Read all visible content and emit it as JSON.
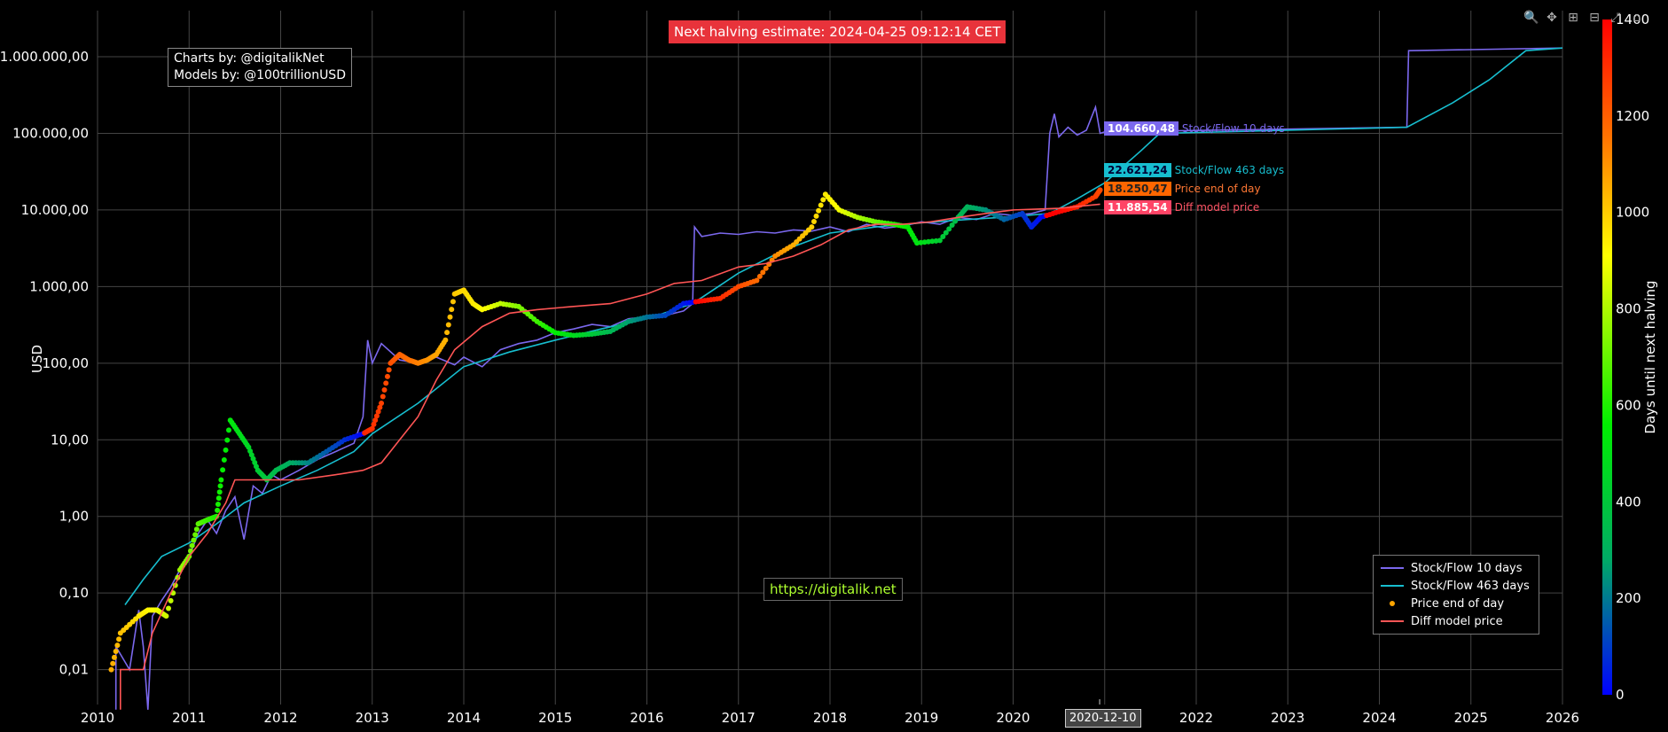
{
  "banner": {
    "text": "Next halving estimate: 2024-04-25 09:12:14 CET"
  },
  "credits": {
    "line1": "Charts by: @digitalikNet",
    "line2": "Models by: @100trillionUSD"
  },
  "url": {
    "text": "https://digitalik.net"
  },
  "hover_date": "2020-12-10",
  "toolbar_icons": [
    "zoom-icon",
    "pan-icon",
    "zoom-in-icon",
    "zoom-out-icon",
    "autoscale-icon",
    "reset-icon"
  ],
  "chart_data": {
    "type": "line",
    "title": "",
    "xlabel": "",
    "ylabel": "USD",
    "y_scale": "log",
    "xlim": [
      2010,
      2026
    ],
    "ylim": [
      0.0035,
      4000000
    ],
    "grid": true,
    "x_ticks": [
      "2010",
      "2011",
      "2012",
      "2013",
      "2014",
      "2015",
      "2016",
      "2017",
      "2018",
      "2019",
      "2020",
      "2021",
      "2022",
      "2023",
      "2024",
      "2025",
      "2026"
    ],
    "y_ticks": [
      {
        "value": 0.01,
        "label": "0,01"
      },
      {
        "value": 0.1,
        "label": "0,10"
      },
      {
        "value": 1,
        "label": "1,00"
      },
      {
        "value": 10,
        "label": "10,00"
      },
      {
        "value": 100,
        "label": "100,00"
      },
      {
        "value": 1000,
        "label": "1.000,00"
      },
      {
        "value": 10000,
        "label": "10.000,00"
      },
      {
        "value": 100000,
        "label": "100.000,00"
      },
      {
        "value": 1000000,
        "label": "1.000.000,00"
      }
    ],
    "legend_position": "bottom-right",
    "colorbar": {
      "label": "Days until next halving",
      "range": [
        0,
        1400
      ],
      "ticks": [
        {
          "value": 0,
          "label": "0"
        },
        {
          "value": 200,
          "label": "200"
        },
        {
          "value": 400,
          "label": "400"
        },
        {
          "value": 600,
          "label": "600"
        },
        {
          "value": 800,
          "label": "800"
        },
        {
          "value": 1000,
          "label": "1000"
        },
        {
          "value": 1200,
          "label": "1200"
        },
        {
          "value": 1400,
          "label": "1400"
        }
      ],
      "colors": [
        "#0000ff",
        "#00aa66",
        "#00ee00",
        "#ffff00",
        "#ff7700",
        "#ff0000"
      ]
    },
    "series": [
      {
        "name": "Stock/Flow 10 days",
        "color": "#7b68ee",
        "end_value_label": "104.660,48",
        "points": [
          [
            2010.2,
            0.003
          ],
          [
            2010.2,
            0.02
          ],
          [
            2010.35,
            0.01
          ],
          [
            2010.45,
            0.06
          ],
          [
            2010.5,
            0.02
          ],
          [
            2010.55,
            0.003
          ],
          [
            2010.6,
            0.05
          ],
          [
            2010.7,
            0.08
          ],
          [
            2010.8,
            0.12
          ],
          [
            2010.9,
            0.2
          ],
          [
            2011.0,
            0.3
          ],
          [
            2011.1,
            0.6
          ],
          [
            2011.2,
            0.9
          ],
          [
            2011.3,
            0.6
          ],
          [
            2011.4,
            1.2
          ],
          [
            2011.5,
            1.8
          ],
          [
            2011.6,
            0.5
          ],
          [
            2011.7,
            2.5
          ],
          [
            2011.8,
            2.0
          ],
          [
            2011.9,
            3.5
          ],
          [
            2012.0,
            3.0
          ],
          [
            2012.2,
            4.0
          ],
          [
            2012.4,
            5.5
          ],
          [
            2012.6,
            7.0
          ],
          [
            2012.8,
            9.0
          ],
          [
            2012.9,
            20
          ],
          [
            2012.95,
            200
          ],
          [
            2013.0,
            100
          ],
          [
            2013.1,
            180
          ],
          [
            2013.3,
            110
          ],
          [
            2013.5,
            100
          ],
          [
            2013.7,
            120
          ],
          [
            2013.9,
            95
          ],
          [
            2014.0,
            120
          ],
          [
            2014.2,
            90
          ],
          [
            2014.4,
            150
          ],
          [
            2014.6,
            180
          ],
          [
            2014.8,
            200
          ],
          [
            2015.0,
            250
          ],
          [
            2015.2,
            280
          ],
          [
            2015.4,
            320
          ],
          [
            2015.6,
            300
          ],
          [
            2015.8,
            380
          ],
          [
            2016.0,
            400
          ],
          [
            2016.2,
            420
          ],
          [
            2016.4,
            480
          ],
          [
            2016.5,
            600
          ],
          [
            2016.52,
            6000
          ],
          [
            2016.6,
            4500
          ],
          [
            2016.8,
            5000
          ],
          [
            2017.0,
            4800
          ],
          [
            2017.2,
            5200
          ],
          [
            2017.4,
            5000
          ],
          [
            2017.6,
            5500
          ],
          [
            2017.8,
            5300
          ],
          [
            2018.0,
            6000
          ],
          [
            2018.2,
            5200
          ],
          [
            2018.4,
            6500
          ],
          [
            2018.6,
            5800
          ],
          [
            2018.8,
            6200
          ],
          [
            2019.0,
            7000
          ],
          [
            2019.2,
            6500
          ],
          [
            2019.4,
            8000
          ],
          [
            2019.6,
            7500
          ],
          [
            2019.8,
            9000
          ],
          [
            2020.0,
            8500
          ],
          [
            2020.2,
            9000
          ],
          [
            2020.35,
            10000
          ],
          [
            2020.4,
            100000
          ],
          [
            2020.45,
            180000
          ],
          [
            2020.5,
            90000
          ],
          [
            2020.6,
            120000
          ],
          [
            2020.7,
            95000
          ],
          [
            2020.8,
            110000
          ],
          [
            2020.9,
            220000
          ],
          [
            2020.95,
            100000
          ],
          [
            2021.0,
            104660
          ],
          [
            2024.3,
            120000
          ],
          [
            2024.32,
            1200000
          ],
          [
            2026.0,
            1300000
          ]
        ]
      },
      {
        "name": "Stock/Flow 463 days",
        "color": "#17becf",
        "end_value_label": "22.621,24",
        "points": [
          [
            2010.3,
            0.07
          ],
          [
            2010.5,
            0.15
          ],
          [
            2010.7,
            0.3
          ],
          [
            2011.0,
            0.45
          ],
          [
            2011.3,
            0.8
          ],
          [
            2011.6,
            1.5
          ],
          [
            2012.0,
            2.5
          ],
          [
            2012.4,
            4.0
          ],
          [
            2012.8,
            7.0
          ],
          [
            2013.0,
            12
          ],
          [
            2013.5,
            30
          ],
          [
            2014.0,
            90
          ],
          [
            2014.5,
            140
          ],
          [
            2015.0,
            200
          ],
          [
            2015.5,
            280
          ],
          [
            2016.0,
            380
          ],
          [
            2016.5,
            600
          ],
          [
            2017.0,
            1500
          ],
          [
            2017.5,
            3000
          ],
          [
            2018.0,
            5000
          ],
          [
            2018.5,
            6000
          ],
          [
            2019.0,
            6800
          ],
          [
            2019.5,
            7500
          ],
          [
            2020.0,
            8200
          ],
          [
            2020.4,
            9000
          ],
          [
            2020.7,
            14000
          ],
          [
            2021.0,
            22621
          ],
          [
            2021.4,
            60000
          ],
          [
            2021.6,
            100000
          ],
          [
            2024.3,
            120000
          ],
          [
            2024.8,
            250000
          ],
          [
            2025.2,
            500000
          ],
          [
            2025.6,
            1200000
          ],
          [
            2026.0,
            1300000
          ]
        ]
      },
      {
        "name": "Price end of day",
        "color": "#ffa500",
        "marker": "dot",
        "end_value_label": "18.250,47",
        "points": [
          [
            2010.15,
            0.01
          ],
          [
            2010.25,
            0.03
          ],
          [
            2010.45,
            0.05
          ],
          [
            2010.55,
            0.06
          ],
          [
            2010.65,
            0.06
          ],
          [
            2010.75,
            0.05
          ],
          [
            2010.9,
            0.2
          ],
          [
            2011.0,
            0.3
          ],
          [
            2011.1,
            0.8
          ],
          [
            2011.2,
            0.9
          ],
          [
            2011.3,
            1.0
          ],
          [
            2011.35,
            3.0
          ],
          [
            2011.45,
            18
          ],
          [
            2011.55,
            12
          ],
          [
            2011.65,
            8
          ],
          [
            2011.75,
            4
          ],
          [
            2011.85,
            3
          ],
          [
            2011.95,
            4
          ],
          [
            2012.1,
            5
          ],
          [
            2012.3,
            5
          ],
          [
            2012.5,
            7
          ],
          [
            2012.7,
            10
          ],
          [
            2012.9,
            12
          ],
          [
            2013.0,
            14
          ],
          [
            2013.1,
            30
          ],
          [
            2013.2,
            100
          ],
          [
            2013.3,
            130
          ],
          [
            2013.4,
            110
          ],
          [
            2013.5,
            100
          ],
          [
            2013.6,
            110
          ],
          [
            2013.7,
            130
          ],
          [
            2013.8,
            200
          ],
          [
            2013.9,
            800
          ],
          [
            2014.0,
            900
          ],
          [
            2014.1,
            600
          ],
          [
            2014.2,
            500
          ],
          [
            2014.4,
            600
          ],
          [
            2014.6,
            550
          ],
          [
            2014.8,
            350
          ],
          [
            2015.0,
            250
          ],
          [
            2015.2,
            230
          ],
          [
            2015.4,
            240
          ],
          [
            2015.6,
            260
          ],
          [
            2015.8,
            350
          ],
          [
            2016.0,
            400
          ],
          [
            2016.2,
            420
          ],
          [
            2016.4,
            600
          ],
          [
            2016.6,
            650
          ],
          [
            2016.8,
            700
          ],
          [
            2017.0,
            1000
          ],
          [
            2017.2,
            1200
          ],
          [
            2017.4,
            2500
          ],
          [
            2017.6,
            3500
          ],
          [
            2017.8,
            6000
          ],
          [
            2017.95,
            16000
          ],
          [
            2018.1,
            10000
          ],
          [
            2018.3,
            8000
          ],
          [
            2018.5,
            7000
          ],
          [
            2018.7,
            6500
          ],
          [
            2018.85,
            6000
          ],
          [
            2018.95,
            3700
          ],
          [
            2019.2,
            4000
          ],
          [
            2019.4,
            8000
          ],
          [
            2019.5,
            11000
          ],
          [
            2019.7,
            10000
          ],
          [
            2019.9,
            7500
          ],
          [
            2020.1,
            9000
          ],
          [
            2020.2,
            6000
          ],
          [
            2020.3,
            8000
          ],
          [
            2020.5,
            9500
          ],
          [
            2020.7,
            11000
          ],
          [
            2020.9,
            15000
          ],
          [
            2020.95,
            18250
          ]
        ]
      },
      {
        "name": "Diff model price",
        "color": "#ff5555",
        "end_value_label": "11.885,54",
        "points": [
          [
            2010.25,
            0.003
          ],
          [
            2010.25,
            0.01
          ],
          [
            2010.5,
            0.01
          ],
          [
            2010.6,
            0.03
          ],
          [
            2010.8,
            0.1
          ],
          [
            2011.0,
            0.3
          ],
          [
            2011.2,
            0.6
          ],
          [
            2011.4,
            1.5
          ],
          [
            2011.5,
            3.0
          ],
          [
            2011.8,
            3.0
          ],
          [
            2012.2,
            3.0
          ],
          [
            2012.6,
            3.5
          ],
          [
            2012.9,
            4.0
          ],
          [
            2013.1,
            5.0
          ],
          [
            2013.3,
            10
          ],
          [
            2013.5,
            20
          ],
          [
            2013.7,
            60
          ],
          [
            2013.9,
            150
          ],
          [
            2014.2,
            300
          ],
          [
            2014.5,
            450
          ],
          [
            2014.8,
            500
          ],
          [
            2015.2,
            550
          ],
          [
            2015.6,
            600
          ],
          [
            2016.0,
            800
          ],
          [
            2016.3,
            1100
          ],
          [
            2016.6,
            1200
          ],
          [
            2017.0,
            1800
          ],
          [
            2017.3,
            2000
          ],
          [
            2017.6,
            2500
          ],
          [
            2017.9,
            3500
          ],
          [
            2018.2,
            5500
          ],
          [
            2018.5,
            6500
          ],
          [
            2018.8,
            6500
          ],
          [
            2019.1,
            7000
          ],
          [
            2019.4,
            8000
          ],
          [
            2019.7,
            9000
          ],
          [
            2020.0,
            10000
          ],
          [
            2020.5,
            10500
          ],
          [
            2020.95,
            11885
          ]
        ]
      }
    ]
  }
}
